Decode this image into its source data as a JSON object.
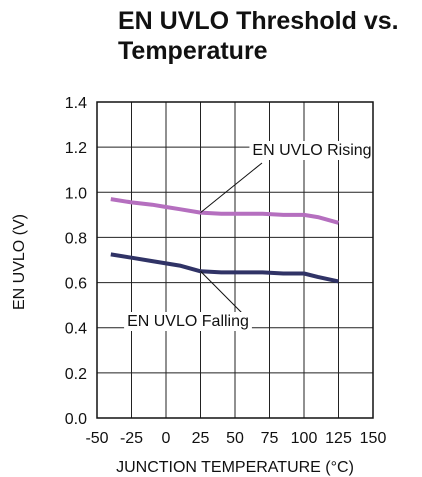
{
  "chart_data": {
    "type": "line",
    "title_lines": [
      "EN UVLO Threshold vs.",
      "Temperature"
    ],
    "xlabel": "JUNCTION TEMPERATURE (°C)",
    "ylabel": "EN UVLO (V)",
    "xlim": [
      -50,
      150
    ],
    "ylim": [
      0.0,
      1.4
    ],
    "x_ticks": [
      -50,
      -25,
      0,
      25,
      50,
      75,
      100,
      125,
      150
    ],
    "y_ticks": [
      "0.0",
      "0.2",
      "0.4",
      "0.6",
      "0.8",
      "1.0",
      "1.2",
      "1.4"
    ],
    "grid": true,
    "series": [
      {
        "name": "EN UVLO Rising",
        "color": "#b56fbf",
        "x": [
          -40,
          -25,
          -10,
          0,
          10,
          25,
          40,
          55,
          70,
          85,
          100,
          110,
          125
        ],
        "y": [
          0.97,
          0.955,
          0.945,
          0.935,
          0.925,
          0.91,
          0.905,
          0.905,
          0.905,
          0.9,
          0.9,
          0.89,
          0.865
        ]
      },
      {
        "name": "EN UVLO Falling",
        "color": "#303366",
        "x": [
          -40,
          -25,
          -10,
          0,
          10,
          25,
          40,
          55,
          70,
          85,
          100,
          110,
          125
        ],
        "y": [
          0.725,
          0.71,
          0.695,
          0.685,
          0.675,
          0.65,
          0.645,
          0.645,
          0.645,
          0.64,
          0.64,
          0.625,
          0.605
        ]
      }
    ]
  }
}
